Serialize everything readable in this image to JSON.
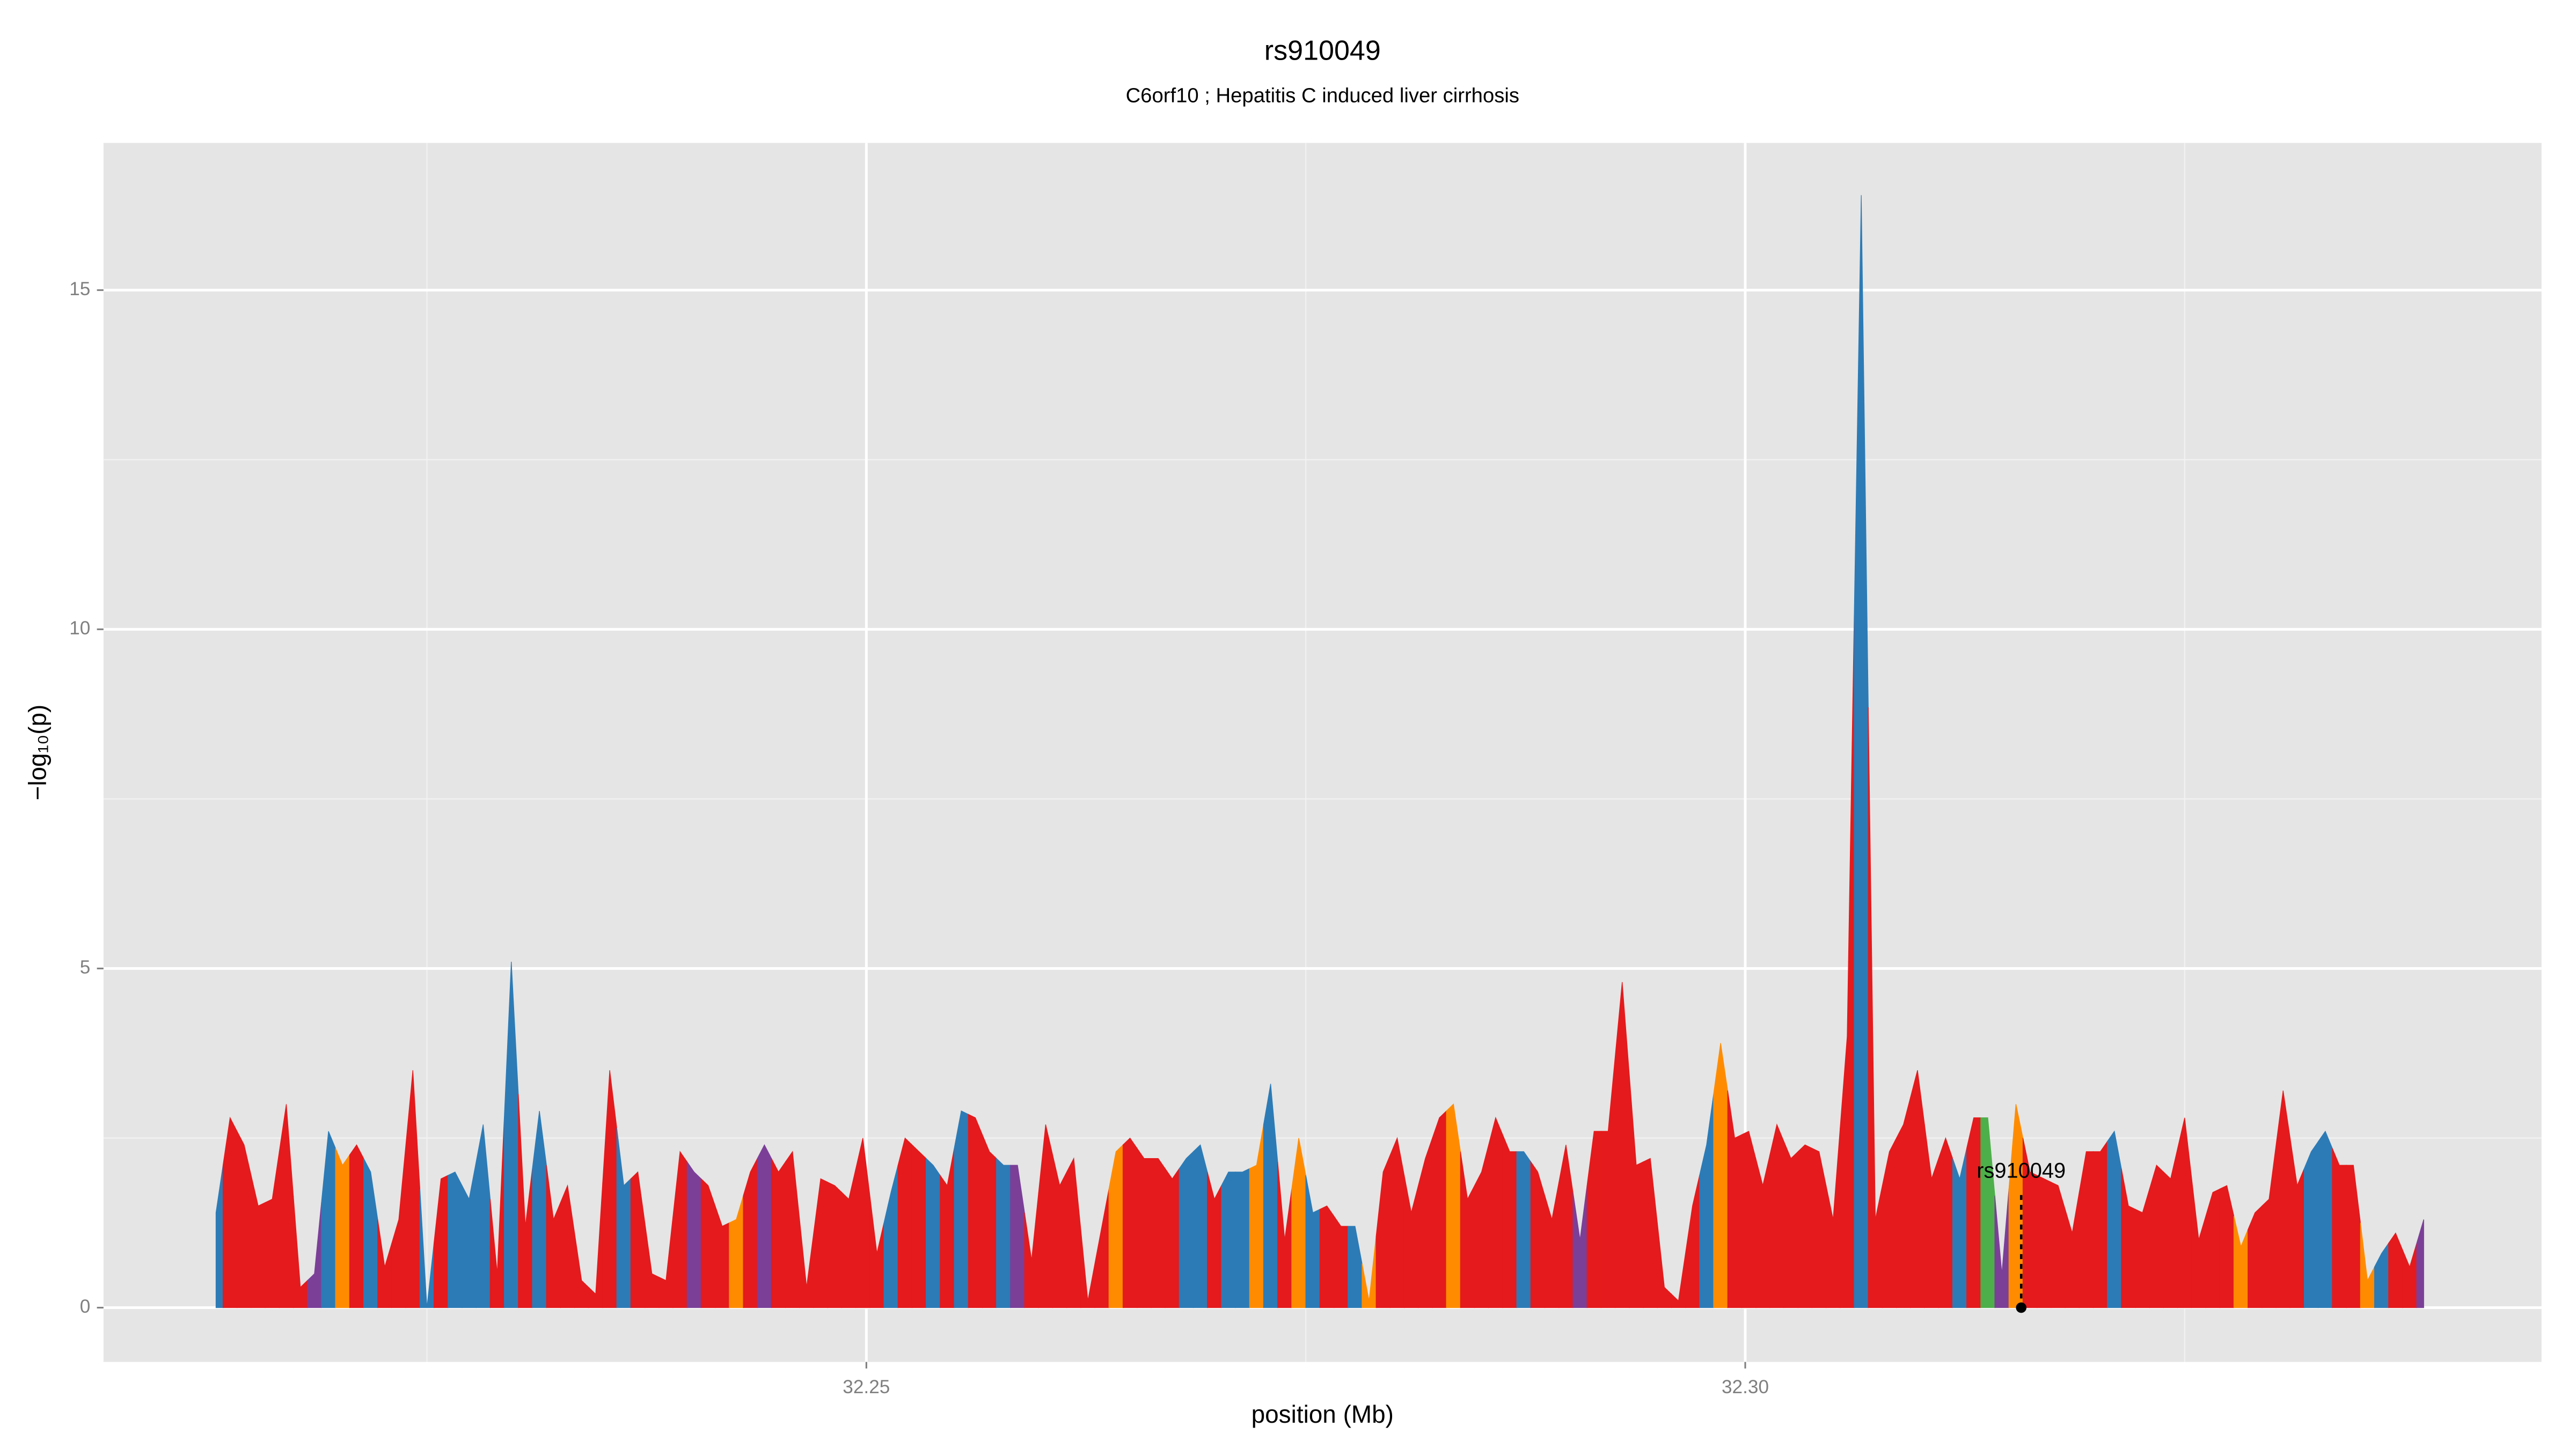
{
  "chart_data": {
    "type": "area",
    "title": "rs910049",
    "subtitle": "C6orf10 ; Hepatitis C induced liver cirrhosis",
    "x_label": "position (Mb)",
    "y_label": "−log₁₀(p)",
    "xlim": [
      32.2066,
      32.3453
    ],
    "ylim": [
      -0.8,
      17.17
    ],
    "xticks": [
      {
        "value": 32.25,
        "label": "32.25"
      },
      {
        "value": 32.3,
        "label": "32.30"
      }
    ],
    "xminor": [
      32.225,
      32.275,
      32.325
    ],
    "yticks": [
      0,
      5,
      10,
      15
    ],
    "yminor": [
      2.5,
      7.5,
      12.5
    ],
    "grid": true,
    "background": "#e5e5e5",
    "x": [
      32.213,
      32.2138,
      32.2146,
      32.2154,
      32.2162,
      32.217,
      32.2178,
      32.2186,
      32.2194,
      32.2202,
      32.221,
      32.2218,
      32.2226,
      32.2234,
      32.2242,
      32.225,
      32.2258,
      32.2266,
      32.2274,
      32.2282,
      32.229,
      32.2298,
      32.2306,
      32.2314,
      32.2322,
      32.233,
      32.2338,
      32.2346,
      32.2354,
      32.2362,
      32.237,
      32.2378,
      32.2386,
      32.2394,
      32.2402,
      32.241,
      32.2418,
      32.2426,
      32.2434,
      32.2442,
      32.245,
      32.2458,
      32.2466,
      32.2474,
      32.2482,
      32.249,
      32.2498,
      32.2506,
      32.2514,
      32.2522,
      32.253,
      32.2538,
      32.2546,
      32.2554,
      32.2562,
      32.257,
      32.2578,
      32.2586,
      32.2594,
      32.2602,
      32.261,
      32.2618,
      32.2626,
      32.2634,
      32.2642,
      32.265,
      32.2658,
      32.2666,
      32.2674,
      32.2682,
      32.269,
      32.2698,
      32.2706,
      32.2714,
      32.2722,
      32.273,
      32.2738,
      32.2746,
      32.2754,
      32.2762,
      32.277,
      32.2778,
      32.2786,
      32.2794,
      32.2802,
      32.281,
      32.2818,
      32.2826,
      32.2834,
      32.2842,
      32.285,
      32.2858,
      32.2866,
      32.2874,
      32.2882,
      32.289,
      32.2898,
      32.2906,
      32.2914,
      32.2922,
      32.293,
      32.2938,
      32.2946,
      32.2954,
      32.2962,
      32.297,
      32.2978,
      32.2986,
      32.2994,
      32.3002,
      32.301,
      32.3018,
      32.3026,
      32.3034,
      32.3042,
      32.305,
      32.3058,
      32.3066,
      32.3074,
      32.3082,
      32.309,
      32.3098,
      32.3106,
      32.3114,
      32.3122,
      32.313,
      32.3138,
      32.3146,
      32.3154,
      32.3162,
      32.317,
      32.3178,
      32.3186,
      32.3194,
      32.3202,
      32.321,
      32.3218,
      32.3226,
      32.3234,
      32.3242,
      32.325,
      32.3258,
      32.3266,
      32.3274,
      32.3282,
      32.329,
      32.3298,
      32.3306,
      32.3314,
      32.3322,
      32.333,
      32.3338,
      32.3346,
      32.3354,
      32.3362,
      32.337,
      32.3378,
      32.3386
    ],
    "values": [
      1.4,
      2.8,
      2.4,
      1.5,
      1.6,
      3.0,
      0.3,
      0.5,
      2.6,
      2.1,
      2.4,
      2.0,
      0.6,
      1.3,
      3.5,
      0.0,
      1.9,
      2.0,
      1.6,
      2.7,
      0.5,
      5.1,
      1.2,
      2.9,
      1.3,
      1.8,
      0.4,
      0.2,
      3.5,
      1.8,
      2.0,
      0.5,
      0.4,
      2.3,
      2.0,
      1.8,
      1.2,
      1.3,
      2.0,
      2.4,
      2.0,
      2.3,
      0.3,
      1.9,
      1.8,
      1.6,
      2.5,
      0.8,
      1.7,
      2.5,
      2.3,
      2.1,
      1.8,
      2.9,
      2.8,
      2.3,
      2.1,
      2.1,
      0.7,
      2.7,
      1.8,
      2.2,
      0.1,
      1.2,
      2.3,
      2.5,
      2.2,
      2.2,
      1.9,
      2.2,
      2.4,
      1.6,
      2.0,
      2.0,
      2.1,
      3.3,
      1.0,
      2.5,
      1.4,
      1.5,
      1.2,
      1.2,
      0.1,
      2.0,
      2.5,
      1.4,
      2.2,
      2.8,
      3.0,
      1.6,
      2.0,
      2.8,
      2.3,
      2.3,
      2.0,
      1.3,
      2.4,
      1.0,
      2.6,
      2.6,
      4.8,
      2.1,
      2.2,
      0.3,
      0.1,
      1.5,
      2.4,
      3.9,
      2.5,
      2.6,
      1.8,
      2.7,
      2.2,
      2.4,
      2.3,
      1.3,
      4.0,
      16.4,
      1.3,
      2.3,
      2.7,
      3.5,
      1.9,
      2.5,
      1.9,
      2.8,
      2.8,
      0.5,
      3.0,
      2.0,
      1.9,
      1.8,
      1.1,
      2.3,
      2.3,
      2.6,
      1.5,
      1.4,
      2.1,
      1.9,
      2.8,
      1.0,
      1.7,
      1.8,
      0.9,
      1.4,
      1.6,
      3.2,
      1.8,
      2.3,
      2.6,
      2.1,
      2.1,
      0.4,
      0.8,
      1.1,
      0.6,
      1.3
    ],
    "colors": [
      "#2c7bb6",
      "#e41a1c",
      "#e41a1c",
      "#e41a1c",
      "#e41a1c",
      "#e41a1c",
      "#e41a1c",
      "#7b3f98",
      "#2c7bb6",
      "#ff8c00",
      "#e41a1c",
      "#2c7bb6",
      "#e41a1c",
      "#e41a1c",
      "#e41a1c",
      "#2c7bb6",
      "#e41a1c",
      "#2c7bb6",
      "#2c7bb6",
      "#2c7bb6",
      "#e41a1c",
      "#2c7bb6",
      "#e41a1c",
      "#2c7bb6",
      "#e41a1c",
      "#e41a1c",
      "#e41a1c",
      "#e41a1c",
      "#e41a1c",
      "#2c7bb6",
      "#e41a1c",
      "#e41a1c",
      "#e41a1c",
      "#e41a1c",
      "#7b3f98",
      "#e41a1c",
      "#e41a1c",
      "#ff8c00",
      "#e41a1c",
      "#7b3f98",
      "#e41a1c",
      "#e41a1c",
      "#e41a1c",
      "#e41a1c",
      "#e41a1c",
      "#e41a1c",
      "#e41a1c",
      "#e41a1c",
      "#2c7bb6",
      "#e41a1c",
      "#e41a1c",
      "#2c7bb6",
      "#e41a1c",
      "#2c7bb6",
      "#e41a1c",
      "#e41a1c",
      "#2c7bb6",
      "#7b3f98",
      "#e41a1c",
      "#e41a1c",
      "#e41a1c",
      "#e41a1c",
      "#e41a1c",
      "#e41a1c",
      "#ff8c00",
      "#e41a1c",
      "#e41a1c",
      "#e41a1c",
      "#e41a1c",
      "#2c7bb6",
      "#2c7bb6",
      "#e41a1c",
      "#2c7bb6",
      "#2c7bb6",
      "#ff8c00",
      "#2c7bb6",
      "#e41a1c",
      "#ff8c00",
      "#2c7bb6",
      "#e41a1c",
      "#e41a1c",
      "#2c7bb6",
      "#ff8c00",
      "#e41a1c",
      "#e41a1c",
      "#e41a1c",
      "#e41a1c",
      "#e41a1c",
      "#ff8c00",
      "#e41a1c",
      "#e41a1c",
      "#e41a1c",
      "#e41a1c",
      "#2c7bb6",
      "#e41a1c",
      "#e41a1c",
      "#e41a1c",
      "#7b3f98",
      "#e41a1c",
      "#e41a1c",
      "#e41a1c",
      "#e41a1c",
      "#e41a1c",
      "#e41a1c",
      "#e41a1c",
      "#e41a1c",
      "#2c7bb6",
      "#ff8c00",
      "#e41a1c",
      "#e41a1c",
      "#e41a1c",
      "#e41a1c",
      "#e41a1c",
      "#e41a1c",
      "#e41a1c",
      "#e41a1c",
      "#e41a1c",
      "#2c7bb6",
      "#e41a1c",
      "#e41a1c",
      "#e41a1c",
      "#e41a1c",
      "#e41a1c",
      "#e41a1c",
      "#2c7bb6",
      "#e41a1c",
      "#4daf4a",
      "#7b3f98",
      "#ff8c00",
      "#e41a1c",
      "#e41a1c",
      "#e41a1c",
      "#e41a1c",
      "#e41a1c",
      "#e41a1c",
      "#2c7bb6",
      "#e41a1c",
      "#e41a1c",
      "#e41a1c",
      "#e41a1c",
      "#e41a1c",
      "#e41a1c",
      "#e41a1c",
      "#e41a1c",
      "#ff8c00",
      "#e41a1c",
      "#e41a1c",
      "#e41a1c",
      "#e41a1c",
      "#2c7bb6",
      "#2c7bb6",
      "#e41a1c",
      "#e41a1c",
      "#ff8c00",
      "#2c7bb6",
      "#e41a1c",
      "#e41a1c",
      "#7b3f98"
    ],
    "annotation": {
      "text": "rs910049",
      "x": 32.3157,
      "y": 2.0
    }
  }
}
